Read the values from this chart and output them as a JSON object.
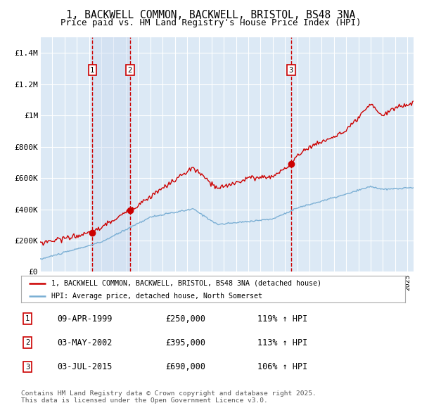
{
  "title": "1, BACKWELL COMMON, BACKWELL, BRISTOL, BS48 3NA",
  "subtitle": "Price paid vs. HM Land Registry's House Price Index (HPI)",
  "title_fontsize": 10.5,
  "subtitle_fontsize": 9,
  "background_color": "#ffffff",
  "plot_bg_color": "#dce9f5",
  "grid_color": "#ffffff",
  "red_line_color": "#cc0000",
  "blue_line_color": "#7bafd4",
  "sale_marker_color": "#cc0000",
  "vline_color": "#cc0000",
  "vband_color": "#c8d8ee",
  "legend_label_red": "1, BACKWELL COMMON, BACKWELL, BRISTOL, BS48 3NA (detached house)",
  "legend_label_blue": "HPI: Average price, detached house, North Somerset",
  "footer_text": "Contains HM Land Registry data © Crown copyright and database right 2025.\nThis data is licensed under the Open Government Licence v3.0.",
  "sales": [
    {
      "label": "1",
      "date_num": 1999.27,
      "price": 250000
    },
    {
      "label": "2",
      "date_num": 2002.34,
      "price": 395000
    },
    {
      "label": "3",
      "date_num": 2015.5,
      "price": 690000
    }
  ],
  "sale_dates_text": [
    "09-APR-1999",
    "03-MAY-2002",
    "03-JUL-2015"
  ],
  "sale_prices_text": [
    "£250,000",
    "£395,000",
    "£690,000"
  ],
  "sale_pct_text": [
    "119% ↑ HPI",
    "113% ↑ HPI",
    "106% ↑ HPI"
  ],
  "xmin": 1995.0,
  "xmax": 2025.5,
  "ymin": 0,
  "ymax": 1500000,
  "yticks": [
    0,
    200000,
    400000,
    600000,
    800000,
    1000000,
    1200000,
    1400000
  ],
  "ytick_labels": [
    "£0",
    "£200K",
    "£400K",
    "£600K",
    "£800K",
    "£1M",
    "£1.2M",
    "£1.4M"
  ]
}
